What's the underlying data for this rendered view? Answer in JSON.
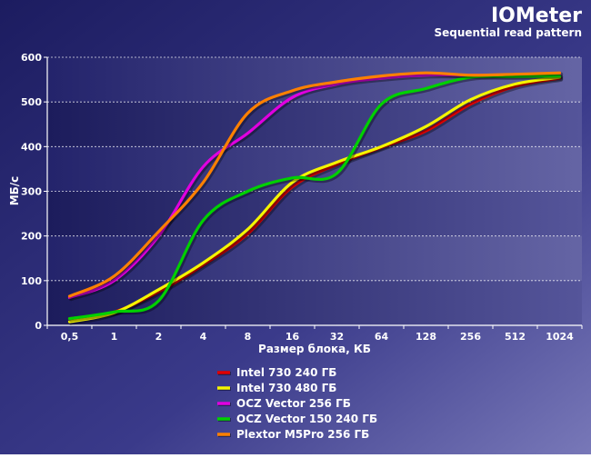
{
  "chart_data": {
    "type": "line",
    "title": "IOMeter",
    "subtitle": "Sequential read pattern",
    "xlabel": "Размер блока, КБ",
    "ylabel": "МБ/с",
    "ylim": [
      0,
      600
    ],
    "yticks": [
      0,
      100,
      200,
      300,
      400,
      500,
      600
    ],
    "grid": true,
    "legend_position": "bottom",
    "categories": [
      "0,5",
      "1",
      "2",
      "4",
      "8",
      "16",
      "32",
      "64",
      "128",
      "256",
      "512",
      "1024"
    ],
    "series": [
      {
        "name": "Intel 730 240 ГБ",
        "color": "#e00000",
        "values": [
          15,
          30,
          75,
          135,
          205,
          310,
          360,
          398,
          435,
          495,
          535,
          553
        ]
      },
      {
        "name": "Intel 730 480 ГБ",
        "color": "#f5f500",
        "values": [
          8,
          28,
          80,
          140,
          215,
          320,
          365,
          400,
          445,
          505,
          540,
          555
        ]
      },
      {
        "name": "OCZ Vector 256 ГБ",
        "color": "#e000e0",
        "values": [
          62,
          100,
          200,
          355,
          430,
          510,
          540,
          553,
          560,
          560,
          560,
          560
        ]
      },
      {
        "name": "OCZ Vector 150 240 ГБ",
        "color": "#00d000",
        "values": [
          15,
          30,
          55,
          235,
          300,
          330,
          340,
          495,
          530,
          555,
          557,
          558
        ]
      },
      {
        "name": "Plextor M5Pro 256 ГБ",
        "color": "#ff8000",
        "values": [
          65,
          110,
          210,
          320,
          475,
          525,
          545,
          558,
          565,
          560,
          562,
          565
        ]
      }
    ]
  }
}
